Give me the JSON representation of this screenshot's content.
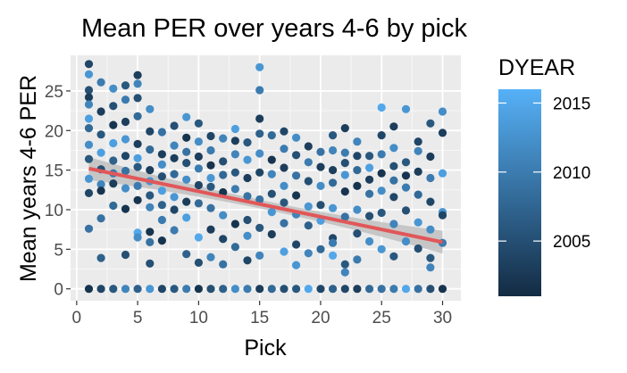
{
  "chart_data": {
    "type": "scatter",
    "title": "Mean PER over years 4-6 by pick",
    "xlabel": "Pick",
    "ylabel": "Mean years 4-6 PER",
    "xlim": [
      -0.5,
      31.5
    ],
    "ylim": [
      -1.5,
      29.5
    ],
    "x_ticks": [
      0,
      5,
      10,
      15,
      20,
      25,
      30
    ],
    "y_ticks": [
      0,
      5,
      10,
      15,
      20,
      25
    ],
    "grid": true,
    "color_by": "DYEAR",
    "legend": {
      "title": "DYEAR",
      "placement": "right",
      "ticks": [
        2005,
        2010,
        2015
      ],
      "range": [
        2001,
        2016
      ],
      "color_low": "#132B43",
      "color_high": "#56B1F7"
    },
    "trend_line": {
      "method": "linear",
      "x": [
        1,
        30
      ],
      "y": [
        15.2,
        5.9
      ],
      "color": "#E15759",
      "band_color": "#bdbdbd"
    },
    "points": [
      {
        "x": 1,
        "y": 28.4,
        "c": 2004
      },
      {
        "x": 1,
        "y": 27.1,
        "c": 2013
      },
      {
        "x": 1,
        "y": 25.1,
        "c": 2005
      },
      {
        "x": 1,
        "y": 24.2,
        "c": 2003
      },
      {
        "x": 1,
        "y": 23.3,
        "c": 2011
      },
      {
        "x": 1,
        "y": 21.5,
        "c": 2014
      },
      {
        "x": 1,
        "y": 20.3,
        "c": 2008
      },
      {
        "x": 1,
        "y": 18.2,
        "c": 2012
      },
      {
        "x": 1,
        "y": 16.4,
        "c": 2006
      },
      {
        "x": 1,
        "y": 13.9,
        "c": 2013
      },
      {
        "x": 1,
        "y": 12.1,
        "c": 2004
      },
      {
        "x": 1,
        "y": 7.6,
        "c": 2009
      },
      {
        "x": 1,
        "y": 0,
        "c": 2002
      },
      {
        "x": 2,
        "y": 26.1,
        "c": 2010
      },
      {
        "x": 2,
        "y": 22.4,
        "c": 2003
      },
      {
        "x": 2,
        "y": 19.5,
        "c": 2006
      },
      {
        "x": 2,
        "y": 17.2,
        "c": 2014
      },
      {
        "x": 2,
        "y": 15.1,
        "c": 2005
      },
      {
        "x": 2,
        "y": 13.2,
        "c": 2011
      },
      {
        "x": 2,
        "y": 12.4,
        "c": 2002
      },
      {
        "x": 2,
        "y": 8.9,
        "c": 2009
      },
      {
        "x": 2,
        "y": 3.9,
        "c": 2007
      },
      {
        "x": 2,
        "y": 0,
        "c": 2004
      },
      {
        "x": 3,
        "y": 25.3,
        "c": 2012
      },
      {
        "x": 3,
        "y": 23.1,
        "c": 2005
      },
      {
        "x": 3,
        "y": 20.7,
        "c": 2002
      },
      {
        "x": 3,
        "y": 18.4,
        "c": 2014
      },
      {
        "x": 3,
        "y": 16.2,
        "c": 2007
      },
      {
        "x": 3,
        "y": 14.6,
        "c": 2010
      },
      {
        "x": 3,
        "y": 13.3,
        "c": 2003
      },
      {
        "x": 3,
        "y": 10.5,
        "c": 2008
      },
      {
        "x": 3,
        "y": 0,
        "c": 2006
      },
      {
        "x": 4,
        "y": 25.7,
        "c": 2006
      },
      {
        "x": 4,
        "y": 23.9,
        "c": 2010
      },
      {
        "x": 4,
        "y": 21.1,
        "c": 2003
      },
      {
        "x": 4,
        "y": 18.9,
        "c": 2013
      },
      {
        "x": 4,
        "y": 16.8,
        "c": 2004
      },
      {
        "x": 4,
        "y": 14.9,
        "c": 2009
      },
      {
        "x": 4,
        "y": 12.7,
        "c": 2012
      },
      {
        "x": 4,
        "y": 10.1,
        "c": 2002
      },
      {
        "x": 4,
        "y": 4.3,
        "c": 2005
      },
      {
        "x": 4,
        "y": 0,
        "c": 2011
      },
      {
        "x": 5,
        "y": 27.0,
        "c": 2003
      },
      {
        "x": 5,
        "y": 25.9,
        "c": 2011
      },
      {
        "x": 5,
        "y": 24.1,
        "c": 2005
      },
      {
        "x": 5,
        "y": 21.8,
        "c": 2008
      },
      {
        "x": 5,
        "y": 18.3,
        "c": 2003
      },
      {
        "x": 5,
        "y": 16.5,
        "c": 2014
      },
      {
        "x": 5,
        "y": 15.4,
        "c": 2006
      },
      {
        "x": 5,
        "y": 13.0,
        "c": 2010
      },
      {
        "x": 5,
        "y": 11.2,
        "c": 2002
      },
      {
        "x": 5,
        "y": 7.1,
        "c": 2015
      },
      {
        "x": 5,
        "y": 6.5,
        "c": 2012
      },
      {
        "x": 5,
        "y": 0,
        "c": 2007
      },
      {
        "x": 6,
        "y": 22.7,
        "c": 2012
      },
      {
        "x": 6,
        "y": 19.9,
        "c": 2004
      },
      {
        "x": 6,
        "y": 17.6,
        "c": 2008
      },
      {
        "x": 6,
        "y": 15.0,
        "c": 2003
      },
      {
        "x": 6,
        "y": 13.6,
        "c": 2013
      },
      {
        "x": 6,
        "y": 11.8,
        "c": 2006
      },
      {
        "x": 6,
        "y": 10.3,
        "c": 2011
      },
      {
        "x": 6,
        "y": 7.2,
        "c": 2002
      },
      {
        "x": 6,
        "y": 5.9,
        "c": 2009
      },
      {
        "x": 6,
        "y": 3.2,
        "c": 2005
      },
      {
        "x": 6,
        "y": 0,
        "c": 2013
      },
      {
        "x": 7,
        "y": 19.8,
        "c": 2009
      },
      {
        "x": 7,
        "y": 17.0,
        "c": 2003
      },
      {
        "x": 7,
        "y": 15.7,
        "c": 2012
      },
      {
        "x": 7,
        "y": 14.2,
        "c": 2005
      },
      {
        "x": 7,
        "y": 12.4,
        "c": 2014
      },
      {
        "x": 7,
        "y": 10.6,
        "c": 2007
      },
      {
        "x": 7,
        "y": 8.7,
        "c": 2010
      },
      {
        "x": 7,
        "y": 6.1,
        "c": 2002
      },
      {
        "x": 7,
        "y": 0,
        "c": 2004
      },
      {
        "x": 8,
        "y": 20.6,
        "c": 2005
      },
      {
        "x": 8,
        "y": 18.1,
        "c": 2011
      },
      {
        "x": 8,
        "y": 16.5,
        "c": 2003
      },
      {
        "x": 8,
        "y": 14.5,
        "c": 2008
      },
      {
        "x": 8,
        "y": 11.6,
        "c": 2013
      },
      {
        "x": 8,
        "y": 10.0,
        "c": 2004
      },
      {
        "x": 8,
        "y": 7.4,
        "c": 2010
      },
      {
        "x": 8,
        "y": 0,
        "c": 2006
      },
      {
        "x": 9,
        "y": 21.7,
        "c": 2013
      },
      {
        "x": 9,
        "y": 19.1,
        "c": 2002
      },
      {
        "x": 9,
        "y": 17.3,
        "c": 2009
      },
      {
        "x": 9,
        "y": 15.9,
        "c": 2005
      },
      {
        "x": 9,
        "y": 13.8,
        "c": 2012
      },
      {
        "x": 9,
        "y": 11.0,
        "c": 2003
      },
      {
        "x": 9,
        "y": 9.0,
        "c": 2014
      },
      {
        "x": 9,
        "y": 4.4,
        "c": 2007
      },
      {
        "x": 9,
        "y": 0,
        "c": 2010
      },
      {
        "x": 10,
        "y": 20.9,
        "c": 2006
      },
      {
        "x": 10,
        "y": 18.6,
        "c": 2012
      },
      {
        "x": 10,
        "y": 16.7,
        "c": 2003
      },
      {
        "x": 10,
        "y": 15.2,
        "c": 2010
      },
      {
        "x": 10,
        "y": 13.1,
        "c": 2004
      },
      {
        "x": 10,
        "y": 10.8,
        "c": 2008
      },
      {
        "x": 10,
        "y": 6.5,
        "c": 2015
      },
      {
        "x": 10,
        "y": 3.3,
        "c": 2005
      },
      {
        "x": 10,
        "y": 0,
        "c": 2002
      },
      {
        "x": 11,
        "y": 19.3,
        "c": 2004
      },
      {
        "x": 11,
        "y": 17.5,
        "c": 2010
      },
      {
        "x": 11,
        "y": 15.6,
        "c": 2002
      },
      {
        "x": 11,
        "y": 14.0,
        "c": 2013
      },
      {
        "x": 11,
        "y": 12.9,
        "c": 2006
      },
      {
        "x": 11,
        "y": 10.2,
        "c": 2009
      },
      {
        "x": 11,
        "y": 7.5,
        "c": 2003
      },
      {
        "x": 11,
        "y": 4.0,
        "c": 2011
      },
      {
        "x": 11,
        "y": 0,
        "c": 2005
      },
      {
        "x": 12,
        "y": 19.0,
        "c": 2011
      },
      {
        "x": 12,
        "y": 16.1,
        "c": 2005
      },
      {
        "x": 12,
        "y": 14.4,
        "c": 2008
      },
      {
        "x": 12,
        "y": 12.2,
        "c": 2002
      },
      {
        "x": 12,
        "y": 9.3,
        "c": 2012
      },
      {
        "x": 12,
        "y": 6.3,
        "c": 2004
      },
      {
        "x": 12,
        "y": 3.1,
        "c": 2009
      },
      {
        "x": 12,
        "y": 0,
        "c": 2007
      },
      {
        "x": 13,
        "y": 20.2,
        "c": 2014
      },
      {
        "x": 13,
        "y": 18.7,
        "c": 2003
      },
      {
        "x": 13,
        "y": 17.0,
        "c": 2011
      },
      {
        "x": 13,
        "y": 14.7,
        "c": 2006
      },
      {
        "x": 13,
        "y": 12.6,
        "c": 2010
      },
      {
        "x": 13,
        "y": 8.2,
        "c": 2002
      },
      {
        "x": 13,
        "y": 5.3,
        "c": 2008
      },
      {
        "x": 13,
        "y": 0,
        "c": 2012
      },
      {
        "x": 14,
        "y": 18.5,
        "c": 2006
      },
      {
        "x": 14,
        "y": 16.3,
        "c": 2013
      },
      {
        "x": 14,
        "y": 14.0,
        "c": 2003
      },
      {
        "x": 14,
        "y": 11.7,
        "c": 2009
      },
      {
        "x": 14,
        "y": 8.7,
        "c": 2005
      },
      {
        "x": 14,
        "y": 6.7,
        "c": 2012
      },
      {
        "x": 14,
        "y": 3.6,
        "c": 2004
      },
      {
        "x": 14,
        "y": 0,
        "c": 2010
      },
      {
        "x": 15,
        "y": 28.0,
        "c": 2013
      },
      {
        "x": 15,
        "y": 25.1,
        "c": 2010
      },
      {
        "x": 15,
        "y": 21.5,
        "c": 2003
      },
      {
        "x": 15,
        "y": 19.6,
        "c": 2007
      },
      {
        "x": 15,
        "y": 17.1,
        "c": 2012
      },
      {
        "x": 15,
        "y": 14.7,
        "c": 2004
      },
      {
        "x": 15,
        "y": 11.3,
        "c": 2009
      },
      {
        "x": 15,
        "y": 7.7,
        "c": 2006
      },
      {
        "x": 15,
        "y": 4.2,
        "c": 2011
      },
      {
        "x": 15,
        "y": 0,
        "c": 2003
      },
      {
        "x": 16,
        "y": 19.4,
        "c": 2008
      },
      {
        "x": 16,
        "y": 16.3,
        "c": 2002
      },
      {
        "x": 16,
        "y": 14.5,
        "c": 2011
      },
      {
        "x": 16,
        "y": 12.0,
        "c": 2005
      },
      {
        "x": 16,
        "y": 9.7,
        "c": 2013
      },
      {
        "x": 16,
        "y": 6.9,
        "c": 2003
      },
      {
        "x": 16,
        "y": 0,
        "c": 2008
      },
      {
        "x": 17,
        "y": 19.9,
        "c": 2004
      },
      {
        "x": 17,
        "y": 17.7,
        "c": 2010
      },
      {
        "x": 17,
        "y": 15.3,
        "c": 2003
      },
      {
        "x": 17,
        "y": 13.0,
        "c": 2012
      },
      {
        "x": 17,
        "y": 10.9,
        "c": 2006
      },
      {
        "x": 17,
        "y": 8.3,
        "c": 2009
      },
      {
        "x": 17,
        "y": 4.7,
        "c": 2014
      },
      {
        "x": 17,
        "y": 0,
        "c": 2005
      },
      {
        "x": 18,
        "y": 19.1,
        "c": 2012
      },
      {
        "x": 18,
        "y": 16.9,
        "c": 2005
      },
      {
        "x": 18,
        "y": 14.3,
        "c": 2009
      },
      {
        "x": 18,
        "y": 11.8,
        "c": 2002
      },
      {
        "x": 18,
        "y": 9.4,
        "c": 2011
      },
      {
        "x": 18,
        "y": 5.6,
        "c": 2004
      },
      {
        "x": 18,
        "y": 3.0,
        "c": 2013
      },
      {
        "x": 18,
        "y": 0,
        "c": 2006
      },
      {
        "x": 19,
        "y": 18.0,
        "c": 2003
      },
      {
        "x": 19,
        "y": 16.0,
        "c": 2010
      },
      {
        "x": 19,
        "y": 13.6,
        "c": 2005
      },
      {
        "x": 19,
        "y": 10.4,
        "c": 2013
      },
      {
        "x": 19,
        "y": 8.0,
        "c": 2007
      },
      {
        "x": 19,
        "y": 4.5,
        "c": 2011
      },
      {
        "x": 19,
        "y": 0,
        "c": 2015
      },
      {
        "x": 20,
        "y": 17.3,
        "c": 2009
      },
      {
        "x": 20,
        "y": 15.4,
        "c": 2003
      },
      {
        "x": 20,
        "y": 13.0,
        "c": 2012
      },
      {
        "x": 20,
        "y": 10.6,
        "c": 2005
      },
      {
        "x": 20,
        "y": 8.6,
        "c": 2014
      },
      {
        "x": 20,
        "y": 5.0,
        "c": 2008
      },
      {
        "x": 20,
        "y": 0,
        "c": 2004
      },
      {
        "x": 21,
        "y": 19.4,
        "c": 2006
      },
      {
        "x": 21,
        "y": 17.5,
        "c": 2011
      },
      {
        "x": 21,
        "y": 15.0,
        "c": 2003
      },
      {
        "x": 21,
        "y": 13.4,
        "c": 2008
      },
      {
        "x": 21,
        "y": 10.2,
        "c": 2013
      },
      {
        "x": 21,
        "y": 6.4,
        "c": 2004
      },
      {
        "x": 21,
        "y": 5.8,
        "c": 2010
      },
      {
        "x": 21,
        "y": 4.2,
        "c": 2015
      },
      {
        "x": 21,
        "y": 0,
        "c": 2007
      },
      {
        "x": 22,
        "y": 20.3,
        "c": 2003
      },
      {
        "x": 22,
        "y": 17.2,
        "c": 2010
      },
      {
        "x": 22,
        "y": 15.9,
        "c": 2005
      },
      {
        "x": 22,
        "y": 14.4,
        "c": 2013
      },
      {
        "x": 22,
        "y": 12.3,
        "c": 2002
      },
      {
        "x": 22,
        "y": 9.1,
        "c": 2009
      },
      {
        "x": 22,
        "y": 3.1,
        "c": 2006
      },
      {
        "x": 22,
        "y": 2.1,
        "c": 2011
      },
      {
        "x": 22,
        "y": 0,
        "c": 2004
      },
      {
        "x": 23,
        "y": 18.6,
        "c": 2011
      },
      {
        "x": 23,
        "y": 16.8,
        "c": 2004
      },
      {
        "x": 23,
        "y": 15.0,
        "c": 2008
      },
      {
        "x": 23,
        "y": 13.0,
        "c": 2002
      },
      {
        "x": 23,
        "y": 10.0,
        "c": 2012
      },
      {
        "x": 23,
        "y": 7.0,
        "c": 2005
      },
      {
        "x": 23,
        "y": 3.7,
        "c": 2010
      },
      {
        "x": 23,
        "y": 0,
        "c": 2003
      },
      {
        "x": 24,
        "y": 16.8,
        "c": 2006
      },
      {
        "x": 24,
        "y": 15.3,
        "c": 2014
      },
      {
        "x": 24,
        "y": 13.8,
        "c": 2003
      },
      {
        "x": 24,
        "y": 12.0,
        "c": 2009
      },
      {
        "x": 24,
        "y": 9.2,
        "c": 2005
      },
      {
        "x": 24,
        "y": 6.0,
        "c": 2012
      },
      {
        "x": 24,
        "y": 0,
        "c": 2008
      },
      {
        "x": 25,
        "y": 22.9,
        "c": 2015
      },
      {
        "x": 25,
        "y": 19.4,
        "c": 2004
      },
      {
        "x": 25,
        "y": 17.0,
        "c": 2010
      },
      {
        "x": 25,
        "y": 14.6,
        "c": 2002
      },
      {
        "x": 25,
        "y": 12.4,
        "c": 2012
      },
      {
        "x": 25,
        "y": 9.6,
        "c": 2006
      },
      {
        "x": 25,
        "y": 5.0,
        "c": 2013
      },
      {
        "x": 25,
        "y": 0,
        "c": 2009
      },
      {
        "x": 26,
        "y": 20.5,
        "c": 2003
      },
      {
        "x": 26,
        "y": 17.8,
        "c": 2012
      },
      {
        "x": 26,
        "y": 15.5,
        "c": 2005
      },
      {
        "x": 26,
        "y": 13.7,
        "c": 2009
      },
      {
        "x": 26,
        "y": 11.6,
        "c": 2004
      },
      {
        "x": 26,
        "y": 8.2,
        "c": 2011
      },
      {
        "x": 26,
        "y": 4.1,
        "c": 2006
      },
      {
        "x": 26,
        "y": 0,
        "c": 2010
      },
      {
        "x": 27,
        "y": 22.7,
        "c": 2013
      },
      {
        "x": 27,
        "y": 16.0,
        "c": 2006
      },
      {
        "x": 27,
        "y": 14.3,
        "c": 2002
      },
      {
        "x": 27,
        "y": 12.8,
        "c": 2010
      },
      {
        "x": 27,
        "y": 9.9,
        "c": 2005
      },
      {
        "x": 27,
        "y": 6.0,
        "c": 2012
      },
      {
        "x": 27,
        "y": 0,
        "c": 2015
      },
      {
        "x": 28,
        "y": 18.6,
        "c": 2004
      },
      {
        "x": 28,
        "y": 17.4,
        "c": 2011
      },
      {
        "x": 28,
        "y": 14.8,
        "c": 2003
      },
      {
        "x": 28,
        "y": 11.9,
        "c": 2008
      },
      {
        "x": 28,
        "y": 8.4,
        "c": 2013
      },
      {
        "x": 28,
        "y": 5.1,
        "c": 2005
      },
      {
        "x": 28,
        "y": 0,
        "c": 2009
      },
      {
        "x": 29,
        "y": 20.9,
        "c": 2006
      },
      {
        "x": 29,
        "y": 16.7,
        "c": 2003
      },
      {
        "x": 29,
        "y": 14.0,
        "c": 2010
      },
      {
        "x": 29,
        "y": 11.0,
        "c": 2004
      },
      {
        "x": 29,
        "y": 7.5,
        "c": 2012
      },
      {
        "x": 29,
        "y": 3.9,
        "c": 2006
      },
      {
        "x": 29,
        "y": 2.7,
        "c": 2011
      },
      {
        "x": 29,
        "y": 0,
        "c": 2005
      },
      {
        "x": 30,
        "y": 22.4,
        "c": 2012
      },
      {
        "x": 30,
        "y": 19.7,
        "c": 2003
      },
      {
        "x": 30,
        "y": 14.6,
        "c": 2014
      },
      {
        "x": 30,
        "y": 9.7,
        "c": 2013
      },
      {
        "x": 30,
        "y": 9.3,
        "c": 2004
      },
      {
        "x": 30,
        "y": 5.8,
        "c": 2010
      },
      {
        "x": 30,
        "y": 0,
        "c": 2002
      }
    ]
  }
}
